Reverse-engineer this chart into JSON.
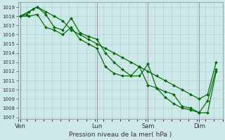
{
  "title": "Pression niveau de la mer( hPa )",
  "ylabel_values": [
    1007,
    1008,
    1009,
    1010,
    1011,
    1012,
    1013,
    1014,
    1015,
    1016,
    1017,
    1018,
    1019
  ],
  "ylim": [
    1006.8,
    1019.5
  ],
  "xtick_labels": [
    "Ven",
    "Lun",
    "Sam",
    "Dim"
  ],
  "xtick_positions": [
    1,
    37,
    61,
    85
  ],
  "xlim": [
    0,
    96
  ],
  "background_color": "#cce8e8",
  "grid_color": "#aacccc",
  "line_color": "#006600",
  "line1_x": [
    1,
    4,
    7,
    9,
    13,
    17,
    21,
    25,
    29,
    33,
    37,
    41,
    45,
    49,
    53,
    57,
    61,
    65,
    69,
    73,
    77,
    81,
    85,
    89,
    93
  ],
  "line1_y": [
    1018.0,
    1018.2,
    1018.8,
    1019.0,
    1018.5,
    1018.0,
    1017.5,
    1016.5,
    1016.0,
    1015.5,
    1015.0,
    1014.5,
    1014.0,
    1013.5,
    1013.0,
    1012.5,
    1012.0,
    1011.5,
    1011.0,
    1010.5,
    1010.0,
    1009.5,
    1009.0,
    1009.5,
    1013.0
  ],
  "line2_x": [
    1,
    5,
    9,
    13,
    17,
    21,
    25,
    29,
    33,
    37,
    41,
    45,
    49,
    53,
    57,
    61,
    65,
    69,
    73,
    77,
    81,
    85,
    89,
    93
  ],
  "line2_y": [
    1018.0,
    1018.5,
    1019.0,
    1018.2,
    1016.8,
    1016.5,
    1017.8,
    1016.2,
    1015.8,
    1015.5,
    1014.0,
    1013.0,
    1012.2,
    1011.5,
    1011.5,
    1012.8,
    1010.2,
    1009.8,
    1009.5,
    1008.2,
    1008.0,
    1007.5,
    1007.5,
    1012.0
  ],
  "line3_x": [
    1,
    5,
    9,
    13,
    17,
    21,
    25,
    29,
    33,
    37,
    41,
    45,
    49,
    53,
    57,
    61,
    65,
    69,
    73,
    77,
    81,
    85,
    89,
    93
  ],
  "line3_y": [
    1018.0,
    1018.0,
    1018.2,
    1016.8,
    1016.5,
    1016.0,
    1016.8,
    1015.5,
    1015.0,
    1014.5,
    1012.5,
    1011.8,
    1011.5,
    1011.5,
    1012.5,
    1010.5,
    1010.2,
    1009.2,
    1008.5,
    1008.0,
    1007.8,
    1007.5,
    1008.8,
    1012.2
  ],
  "vline_positions": [
    1,
    37,
    61,
    85
  ],
  "vline_color": "#999999"
}
